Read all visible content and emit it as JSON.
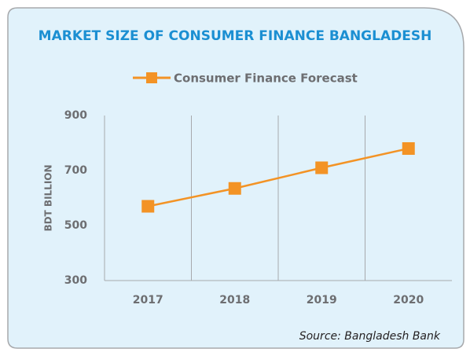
{
  "chart_data": {
    "type": "line",
    "title": "MARKET SIZE OF CONSUMER FINANCE BANGLADESH",
    "categories": [
      "2017",
      "2018",
      "2019",
      "2020"
    ],
    "series": [
      {
        "name": "Consumer Finance Forecast",
        "color": "#f39325",
        "values": [
          570,
          635,
          710,
          780
        ]
      }
    ],
    "ylabel": "BDT BILLION",
    "ylim": [
      300,
      900
    ],
    "yticks": [
      300,
      500,
      700,
      900
    ],
    "grid": true,
    "legend": "top",
    "source": "Source: Bangladesh Bank"
  }
}
